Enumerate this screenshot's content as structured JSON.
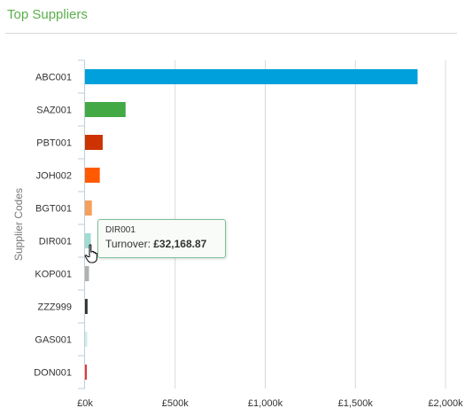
{
  "panel": {
    "title": "Top Suppliers"
  },
  "tooltip": {
    "supplier": "DIR001",
    "label": "Turnover:",
    "value": "£32,168.87"
  },
  "chart_data": {
    "type": "bar",
    "orientation": "horizontal",
    "title": "",
    "ylabel": "Supplier Codes",
    "xlabel": "",
    "categories": [
      "ABC001",
      "SAZ001",
      "PBT001",
      "JOH002",
      "BGT001",
      "DIR001",
      "KOP001",
      "ZZZ999",
      "GAS001",
      "DON001"
    ],
    "values": [
      1845000,
      225000,
      98000,
      82000,
      38000,
      32168.87,
      22000,
      14000,
      12000,
      10000
    ],
    "colors": [
      "#00a0dc",
      "#43a944",
      "#cc3300",
      "#ff5a00",
      "#f5a05a",
      "#a0dcd2",
      "#b0b0b0",
      "#333333",
      "#d0ece6",
      "#ee3333"
    ],
    "xlim": [
      0,
      2000000
    ],
    "xticks": [
      0,
      500000,
      1000000,
      1500000,
      2000000
    ],
    "xtick_labels": [
      "£0k",
      "£500k",
      "£1,000k",
      "£1,500k",
      "£2,000k"
    ],
    "grid": true
  }
}
